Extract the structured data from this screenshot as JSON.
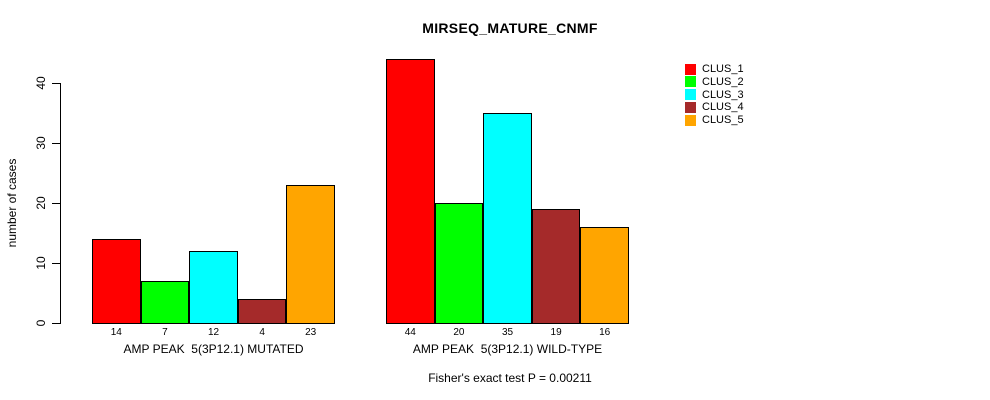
{
  "title": "MIRSEQ_MATURE_CNMF",
  "footer": "Fisher's exact test P = 0.00211",
  "y_axis": {
    "label": "number of cases"
  },
  "legend": {
    "entries": [
      {
        "label": "CLUS_1",
        "color": "#FF0000"
      },
      {
        "label": "CLUS_2",
        "color": "#00FF00"
      },
      {
        "label": "CLUS_3",
        "color": "#00FFFF"
      },
      {
        "label": "CLUS_4",
        "color": "#A52A2A"
      },
      {
        "label": "CLUS_5",
        "color": "#FFA500"
      }
    ]
  },
  "chart_data": {
    "type": "bar",
    "title": "MIRSEQ_MATURE_CNMF",
    "xlabel": "",
    "ylabel": "number of cases",
    "ylim": [
      0,
      44
    ],
    "yticks": [
      0,
      10,
      20,
      30,
      40
    ],
    "grid": false,
    "legend_position": "right",
    "series_names": [
      "CLUS_1",
      "CLUS_2",
      "CLUS_3",
      "CLUS_4",
      "CLUS_5"
    ],
    "colors": [
      "#FF0000",
      "#00FF00",
      "#00FFFF",
      "#A52A2A",
      "#FFA500"
    ],
    "groups": [
      {
        "label": "AMP PEAK  5(3P12.1) MUTATED",
        "values": [
          14,
          7,
          12,
          4,
          23
        ]
      },
      {
        "label": "AMP PEAK  5(3P12.1) WILD-TYPE",
        "values": [
          44,
          20,
          35,
          19,
          16
        ]
      }
    ],
    "annotation": "Fisher's exact test P = 0.00211"
  }
}
